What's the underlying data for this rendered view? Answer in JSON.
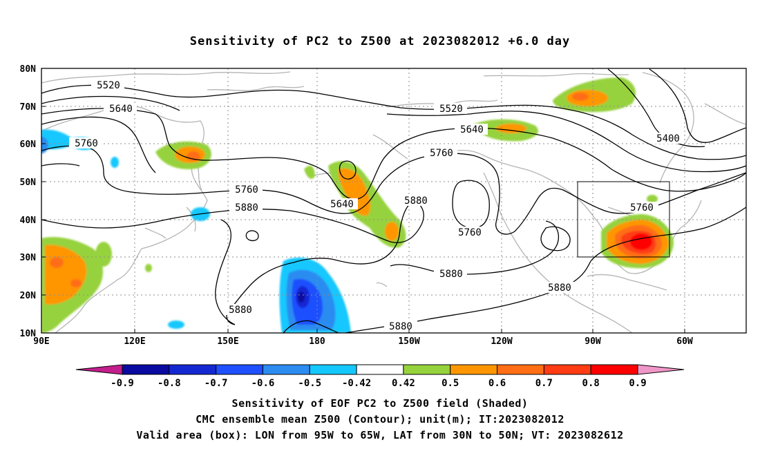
{
  "title": "Sensitivity of PC2 to Z500 at 2023082012 +6.0 day",
  "lat_labels": [
    "80N",
    "70N",
    "60N",
    "50N",
    "40N",
    "30N",
    "20N",
    "10N"
  ],
  "lon_labels": [
    "90E",
    "120E",
    "150E",
    "180",
    "150W",
    "120W",
    "90W",
    "60W"
  ],
  "contour_labels": [
    "5520",
    "5640",
    "5760",
    "5520",
    "5640",
    "5760",
    "5400",
    "5760",
    "5880",
    "5640",
    "5880",
    "5760",
    "5760",
    "5880",
    "5880",
    "5880",
    "5880"
  ],
  "colorbar": {
    "ticks": [
      "-0.9",
      "-0.8",
      "-0.7",
      "-0.6",
      "-0.5",
      "-0.42",
      "0.42",
      "0.5",
      "0.6",
      "0.7",
      "0.8",
      "0.9"
    ],
    "colors": [
      "#c21e8c",
      "#0a0aa0",
      "#1428d2",
      "#1e50ff",
      "#2c8cf0",
      "#14c8ff",
      "#ffffff",
      "#96d23c",
      "#ff9600",
      "#ff6e14",
      "#ff3c14",
      "#ff0000",
      "#f096c8"
    ]
  },
  "captions": [
    "Sensitivity of EOF PC2 to Z500 field (Shaded)",
    "CMC ensemble mean Z500 (Contour); unit(m); IT:2023082012",
    "Valid area (box): LON from 95W to 65W, LAT from 30N to 50N; VT: 2023082612"
  ],
  "valid_area": {
    "lon_min": -95,
    "lon_max": -65,
    "lat_min": 30,
    "lat_max": 50
  }
}
